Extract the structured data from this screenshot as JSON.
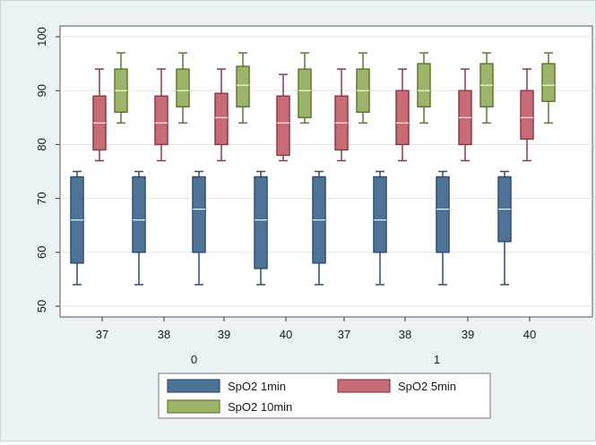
{
  "chart_data": {
    "type": "box",
    "ylim": [
      48,
      102
    ],
    "yticks": [
      50,
      60,
      70,
      80,
      90,
      100
    ],
    "grid": true,
    "legend_position": "bottom",
    "groups": [
      {
        "label": "0",
        "categories": [
          "37",
          "38",
          "39",
          "40"
        ]
      },
      {
        "label": "1",
        "categories": [
          "37",
          "38",
          "39",
          "40"
        ]
      }
    ],
    "series": [
      {
        "name": "SpO2 1min",
        "color": "#4f7396",
        "boxes": [
          {
            "min": 54,
            "q1": 58,
            "median": 66,
            "q3": 74,
            "max": 75
          },
          {
            "min": 54,
            "q1": 60,
            "median": 66,
            "q3": 74,
            "max": 75
          },
          {
            "min": 54,
            "q1": 60,
            "median": 68,
            "q3": 74,
            "max": 75
          },
          {
            "min": 54,
            "q1": 57,
            "median": 66,
            "q3": 74,
            "max": 75
          },
          {
            "min": 54,
            "q1": 58,
            "median": 66,
            "q3": 74,
            "max": 75
          },
          {
            "min": 54,
            "q1": 60,
            "median": 66,
            "q3": 74,
            "max": 75
          },
          {
            "min": 54,
            "q1": 60,
            "median": 68,
            "q3": 74,
            "max": 75
          },
          {
            "min": 54,
            "q1": 62,
            "median": 68,
            "q3": 74,
            "max": 75
          }
        ]
      },
      {
        "name": "SpO2 5min",
        "color": "#c76b76",
        "boxes": [
          {
            "min": 77,
            "q1": 79,
            "median": 84,
            "q3": 89,
            "max": 94
          },
          {
            "min": 77,
            "q1": 80,
            "median": 84,
            "q3": 89,
            "max": 94
          },
          {
            "min": 77,
            "q1": 80,
            "median": 85,
            "q3": 89.5,
            "max": 94
          },
          {
            "min": 77,
            "q1": 78,
            "median": 84,
            "q3": 89,
            "max": 93
          },
          {
            "min": 77,
            "q1": 79,
            "median": 84,
            "q3": 89,
            "max": 94
          },
          {
            "min": 77,
            "q1": 80,
            "median": 84,
            "q3": 90,
            "max": 94
          },
          {
            "min": 77,
            "q1": 80,
            "median": 85,
            "q3": 90,
            "max": 94
          },
          {
            "min": 77,
            "q1": 81,
            "median": 85,
            "q3": 90,
            "max": 94
          }
        ]
      },
      {
        "name": "SpO2 10min",
        "color": "#9db56b",
        "boxes": [
          {
            "min": 84,
            "q1": 86,
            "median": 90,
            "q3": 94,
            "max": 97
          },
          {
            "min": 84,
            "q1": 87,
            "median": 90,
            "q3": 94,
            "max": 97
          },
          {
            "min": 84,
            "q1": 87,
            "median": 91,
            "q3": 94.5,
            "max": 97
          },
          {
            "min": 84,
            "q1": 85,
            "median": 90,
            "q3": 94,
            "max": 97
          },
          {
            "min": 84,
            "q1": 86,
            "median": 90,
            "q3": 94,
            "max": 97
          },
          {
            "min": 84,
            "q1": 87,
            "median": 90,
            "q3": 95,
            "max": 97
          },
          {
            "min": 84,
            "q1": 87,
            "median": 91,
            "q3": 95,
            "max": 97
          },
          {
            "min": 84,
            "q1": 88,
            "median": 91,
            "q3": 95,
            "max": 97
          }
        ]
      }
    ]
  }
}
